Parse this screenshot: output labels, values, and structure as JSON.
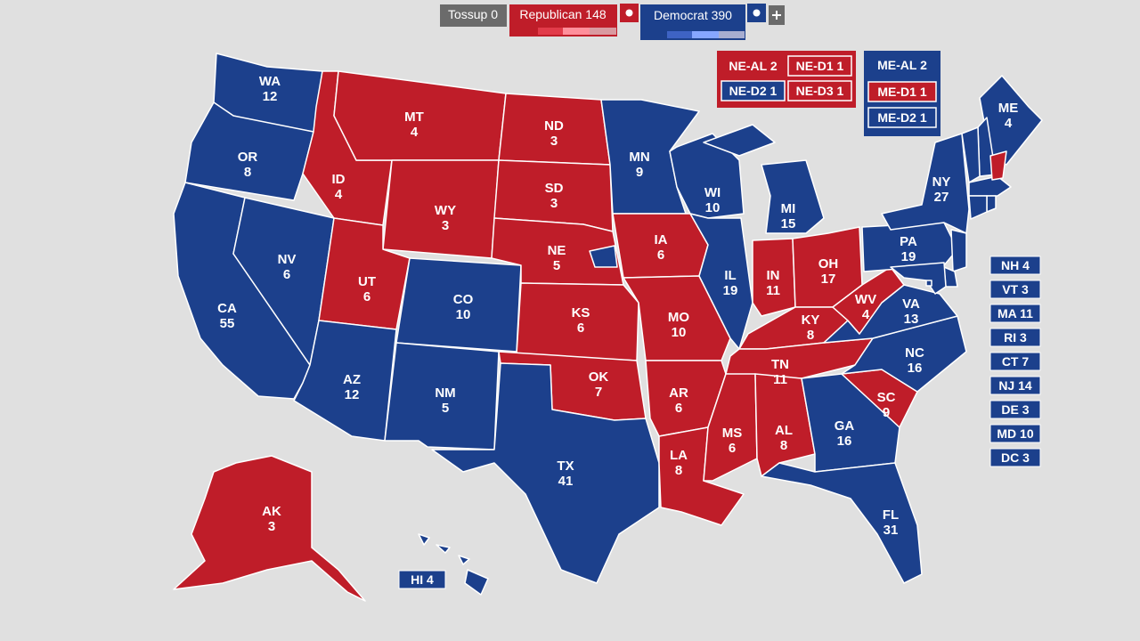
{
  "header": {
    "tossup": {
      "label": "Tossup",
      "votes": 0
    },
    "republican": {
      "label": "Republican",
      "votes": 148
    },
    "democrat": {
      "label": "Democrat",
      "votes": 390
    }
  },
  "colors": {
    "R": "#bf1d29",
    "D": "#1c408c",
    "tossup": "#6b6b6b"
  },
  "states": [
    {
      "abbr": "WA",
      "votes": 12,
      "party": "D"
    },
    {
      "abbr": "OR",
      "votes": 8,
      "party": "D"
    },
    {
      "abbr": "CA",
      "votes": 55,
      "party": "D"
    },
    {
      "abbr": "NV",
      "votes": 6,
      "party": "D"
    },
    {
      "abbr": "ID",
      "votes": 4,
      "party": "R"
    },
    {
      "abbr": "MT",
      "votes": 4,
      "party": "R"
    },
    {
      "abbr": "WY",
      "votes": 3,
      "party": "R"
    },
    {
      "abbr": "UT",
      "votes": 6,
      "party": "R"
    },
    {
      "abbr": "AZ",
      "votes": 12,
      "party": "D"
    },
    {
      "abbr": "CO",
      "votes": 10,
      "party": "D"
    },
    {
      "abbr": "NM",
      "votes": 5,
      "party": "D"
    },
    {
      "abbr": "ND",
      "votes": 3,
      "party": "R"
    },
    {
      "abbr": "SD",
      "votes": 3,
      "party": "R"
    },
    {
      "abbr": "NE",
      "votes": 5,
      "party": "R"
    },
    {
      "abbr": "KS",
      "votes": 6,
      "party": "R"
    },
    {
      "abbr": "OK",
      "votes": 7,
      "party": "R"
    },
    {
      "abbr": "TX",
      "votes": 41,
      "party": "D"
    },
    {
      "abbr": "MN",
      "votes": 9,
      "party": "D"
    },
    {
      "abbr": "IA",
      "votes": 6,
      "party": "R"
    },
    {
      "abbr": "MO",
      "votes": 10,
      "party": "R"
    },
    {
      "abbr": "AR",
      "votes": 6,
      "party": "R"
    },
    {
      "abbr": "LA",
      "votes": 8,
      "party": "R"
    },
    {
      "abbr": "WI",
      "votes": 10,
      "party": "D"
    },
    {
      "abbr": "IL",
      "votes": 19,
      "party": "D"
    },
    {
      "abbr": "MI",
      "votes": 15,
      "party": "D"
    },
    {
      "abbr": "IN",
      "votes": 11,
      "party": "R"
    },
    {
      "abbr": "OH",
      "votes": 17,
      "party": "R"
    },
    {
      "abbr": "KY",
      "votes": 8,
      "party": "R"
    },
    {
      "abbr": "TN",
      "votes": 11,
      "party": "R"
    },
    {
      "abbr": "MS",
      "votes": 6,
      "party": "R"
    },
    {
      "abbr": "AL",
      "votes": 8,
      "party": "R"
    },
    {
      "abbr": "GA",
      "votes": 16,
      "party": "D"
    },
    {
      "abbr": "FL",
      "votes": 31,
      "party": "D"
    },
    {
      "abbr": "SC",
      "votes": 9,
      "party": "R"
    },
    {
      "abbr": "NC",
      "votes": 16,
      "party": "D"
    },
    {
      "abbr": "VA",
      "votes": 13,
      "party": "D"
    },
    {
      "abbr": "WV",
      "votes": 4,
      "party": "R"
    },
    {
      "abbr": "PA",
      "votes": 19,
      "party": "D"
    },
    {
      "abbr": "NY",
      "votes": 27,
      "party": "D"
    },
    {
      "abbr": "ME",
      "votes": 4,
      "party": "D"
    },
    {
      "abbr": "AK",
      "votes": 3,
      "party": "R"
    }
  ],
  "boxed_states": [
    {
      "abbr": "HI",
      "votes": 4,
      "party": "D"
    },
    {
      "abbr": "NH",
      "votes": 4,
      "party": "D"
    },
    {
      "abbr": "VT",
      "votes": 3,
      "party": "D"
    },
    {
      "abbr": "MA",
      "votes": 11,
      "party": "D"
    },
    {
      "abbr": "RI",
      "votes": 3,
      "party": "D"
    },
    {
      "abbr": "CT",
      "votes": 7,
      "party": "D"
    },
    {
      "abbr": "NJ",
      "votes": 14,
      "party": "D"
    },
    {
      "abbr": "DE",
      "votes": 3,
      "party": "D"
    },
    {
      "abbr": "MD",
      "votes": 10,
      "party": "D"
    },
    {
      "abbr": "DC",
      "votes": 3,
      "party": "D"
    }
  ],
  "districts": [
    {
      "label": "NE-AL",
      "votes": 2,
      "party": "R"
    },
    {
      "label": "NE-D1",
      "votes": 1,
      "party": "R"
    },
    {
      "label": "NE-D2",
      "votes": 1,
      "party": "D"
    },
    {
      "label": "NE-D3",
      "votes": 1,
      "party": "R"
    },
    {
      "label": "ME-AL",
      "votes": 2,
      "party": "D"
    },
    {
      "label": "ME-D1",
      "votes": 1,
      "party": "R"
    },
    {
      "label": "ME-D2",
      "votes": 1,
      "party": "D"
    }
  ]
}
